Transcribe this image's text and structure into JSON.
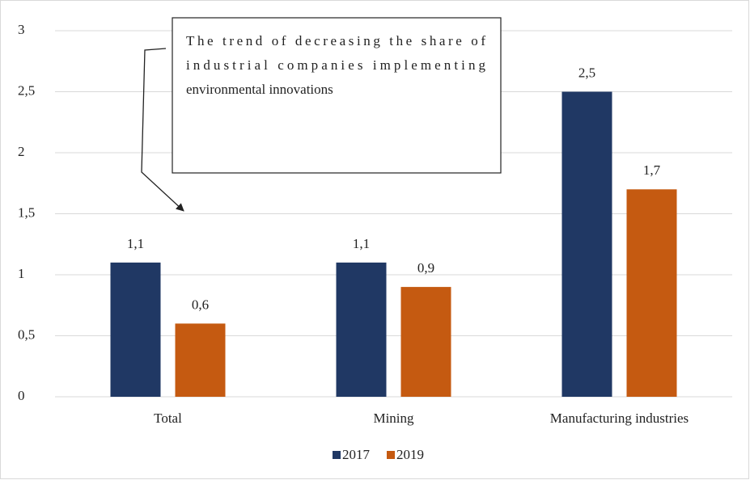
{
  "chart_data": {
    "type": "bar",
    "categories": [
      "Total",
      "Mining",
      "Manufacturing industries"
    ],
    "series": [
      {
        "name": "2017",
        "color": "#203864",
        "values": [
          1.1,
          1.1,
          2.5
        ],
        "value_labels": [
          "1,1",
          "1,1",
          "2,5"
        ]
      },
      {
        "name": "2019",
        "color": "#c55a11",
        "values": [
          0.6,
          0.9,
          1.7
        ],
        "value_labels": [
          "0,6",
          "0,9",
          "1,7"
        ]
      }
    ],
    "ylim": [
      0,
      3
    ],
    "yticks": [
      0,
      {
        "value": 0.5,
        "label": "0,5"
      },
      1,
      {
        "value": 1.5,
        "label": "1,5"
      },
      2,
      {
        "value": 2.5,
        "label": "2,5"
      },
      3
    ],
    "grid": true,
    "legend": "bottom",
    "annotation": [
      "The trend of decreasing the share of",
      "industrial companies implementing",
      "environmental innovations"
    ]
  }
}
